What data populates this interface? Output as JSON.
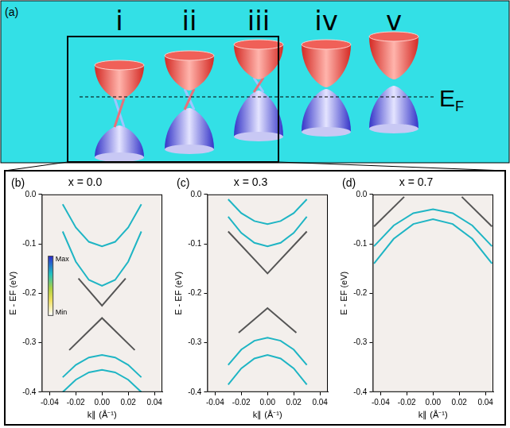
{
  "diagram": {
    "panel_label": "(a)",
    "states": [
      "i",
      "ii",
      "iii",
      "iv",
      "v"
    ],
    "fermi_label": {
      "text": "E",
      "subscript": "F"
    }
  },
  "chart_data": [
    {
      "type": "line",
      "panel_label": "(b)",
      "title": "x = 0.0",
      "x_label": "k∥ (Å⁻¹)",
      "y_label": "E - EF (eV)",
      "xlim": [
        -0.046,
        0.046
      ],
      "ylim": [
        -0.4,
        0.0
      ],
      "xticks": [
        -0.04,
        -0.02,
        {
          "value": 0,
          "label": "0.00"
        },
        0.02,
        0.04
      ],
      "yticks": [
        {
          "value": 0,
          "label": "0.0"
        },
        -0.1,
        -0.2,
        -0.3,
        -0.4
      ],
      "grid": false,
      "colorbar": {
        "labels": [
          "Max",
          "Min"
        ]
      },
      "series": [
        {
          "color": "#1fb5c4",
          "x": [
            -0.03,
            -0.02,
            -0.01,
            0,
            0.01,
            0.02,
            0.03
          ],
          "values": [
            -0.02,
            -0.067,
            -0.096,
            -0.105,
            -0.096,
            -0.067,
            -0.02
          ]
        },
        {
          "color": "#1fb5c4",
          "x": [
            -0.03,
            -0.02,
            -0.01,
            0,
            0.01,
            0.02,
            0.03
          ],
          "values": [
            -0.075,
            -0.136,
            -0.173,
            -0.185,
            -0.173,
            -0.136,
            -0.075
          ]
        },
        {
          "color": "#555555",
          "x": [
            -0.018,
            0,
            0.018
          ],
          "values": [
            -0.17,
            -0.225,
            -0.17
          ]
        },
        {
          "color": "#555555",
          "x": [
            -0.025,
            0,
            0.025
          ],
          "values": [
            -0.315,
            -0.25,
            -0.315
          ]
        },
        {
          "color": "#1fb5c4",
          "x": [
            -0.03,
            -0.02,
            -0.01,
            0,
            0.01,
            0.02,
            0.03
          ],
          "values": [
            -0.37,
            -0.345,
            -0.33,
            -0.325,
            -0.33,
            -0.345,
            -0.37
          ]
        },
        {
          "color": "#1fb5c4",
          "x": [
            -0.03,
            -0.02,
            -0.01,
            0,
            0.01,
            0.02,
            0.03
          ],
          "values": [
            -0.4,
            -0.375,
            -0.36,
            -0.355,
            -0.36,
            -0.375,
            -0.4
          ]
        }
      ]
    },
    {
      "type": "line",
      "panel_label": "(c)",
      "title": "x = 0.3",
      "x_label": "k∥ (Å⁻¹)",
      "y_label": "E - EF (eV)",
      "xlim": [
        -0.046,
        0.046
      ],
      "ylim": [
        -0.4,
        0.0
      ],
      "xticks": [
        -0.04,
        -0.02,
        {
          "value": 0,
          "label": "0.00"
        },
        0.02,
        0.04
      ],
      "yticks": [
        {
          "value": 0,
          "label": "0.0"
        },
        -0.1,
        -0.2,
        -0.3,
        -0.4
      ],
      "grid": false,
      "series": [
        {
          "color": "#1fb5c4",
          "x": [
            -0.03,
            -0.02,
            -0.01,
            0,
            0.01,
            0.02,
            0.03
          ],
          "values": [
            -0.01,
            -0.038,
            -0.054,
            -0.06,
            -0.054,
            -0.038,
            -0.01
          ]
        },
        {
          "color": "#1fb5c4",
          "x": [
            -0.03,
            -0.02,
            -0.01,
            0,
            0.01,
            0.02,
            0.03
          ],
          "values": [
            -0.045,
            -0.078,
            -0.098,
            -0.105,
            -0.098,
            -0.078,
            -0.045
          ]
        },
        {
          "color": "#555555",
          "x": [
            -0.03,
            0,
            0.03
          ],
          "values": [
            -0.075,
            -0.16,
            -0.075
          ]
        },
        {
          "color": "#555555",
          "x": [
            -0.022,
            0,
            0.022
          ],
          "values": [
            -0.28,
            -0.23,
            -0.28
          ]
        },
        {
          "color": "#1fb5c4",
          "x": [
            -0.03,
            -0.02,
            -0.01,
            0,
            0.01,
            0.02,
            0.03
          ],
          "values": [
            -0.345,
            -0.314,
            -0.296,
            -0.29,
            -0.296,
            -0.314,
            -0.345
          ]
        },
        {
          "color": "#1fb5c4",
          "x": [
            -0.03,
            -0.02,
            -0.01,
            0,
            0.01,
            0.02,
            0.03
          ],
          "values": [
            -0.385,
            -0.352,
            -0.332,
            -0.325,
            -0.332,
            -0.352,
            -0.385
          ]
        }
      ]
    },
    {
      "type": "line",
      "panel_label": "(d)",
      "title": "x = 0.7",
      "x_label": "k∥ (Å⁻¹)",
      "y_label": "E - EF (eV)",
      "xlim": [
        -0.046,
        0.046
      ],
      "ylim": [
        -0.4,
        0.0
      ],
      "xticks": [
        -0.04,
        -0.02,
        {
          "value": 0,
          "label": "0.00"
        },
        0.02,
        0.04
      ],
      "yticks": [
        {
          "value": 0,
          "label": "0.0"
        },
        -0.1,
        -0.2,
        -0.3,
        -0.4
      ],
      "grid": false,
      "series": [
        {
          "color": "#1fb5c4",
          "x": [
            -0.045,
            -0.03,
            -0.015,
            0,
            0.015,
            0.03,
            0.045
          ],
          "values": [
            -0.105,
            -0.063,
            -0.038,
            -0.03,
            -0.038,
            -0.063,
            -0.105
          ]
        },
        {
          "color": "#1fb5c4",
          "x": [
            -0.045,
            -0.03,
            -0.015,
            0,
            0.015,
            0.03,
            0.045
          ],
          "values": [
            -0.14,
            -0.09,
            -0.06,
            -0.05,
            -0.06,
            -0.09,
            -0.14
          ]
        },
        {
          "color": "#555555",
          "x": [
            -0.045,
            -0.022
          ],
          "values": [
            -0.065,
            -0.005
          ]
        },
        {
          "color": "#555555",
          "x": [
            0.022,
            0.045
          ],
          "values": [
            -0.005,
            -0.065
          ]
        }
      ]
    }
  ]
}
